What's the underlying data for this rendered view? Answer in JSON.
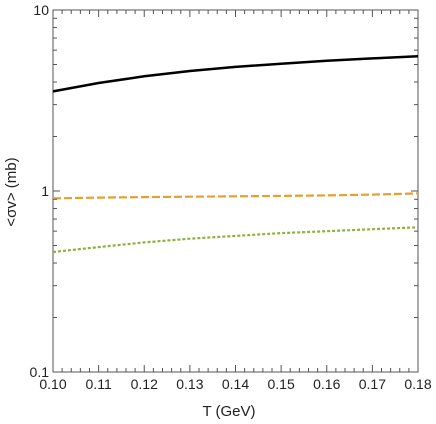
{
  "chart_data": {
    "type": "line",
    "title": "",
    "xlabel": "T (GeV)",
    "ylabel": "<σv> (mb)",
    "xlim": [
      0.1,
      0.18
    ],
    "ylim": [
      0.1,
      10
    ],
    "yscale": "log",
    "xticks": [
      0.1,
      0.11,
      0.12,
      0.13,
      0.14,
      0.15,
      0.16,
      0.17,
      0.18
    ],
    "xtick_labels": [
      "0.10",
      "0.11",
      "0.12",
      "0.13",
      "0.14",
      "0.15",
      "0.16",
      "0.17",
      "0.18"
    ],
    "yticks": [
      0.1,
      1,
      10
    ],
    "ytick_labels": [
      "0.1",
      "1",
      "10"
    ],
    "grid": false,
    "legend": "none",
    "x": [
      0.1,
      0.11,
      0.12,
      0.13,
      0.14,
      0.15,
      0.16,
      0.17,
      0.18
    ],
    "series": [
      {
        "values": [
          3.55,
          3.95,
          4.3,
          4.6,
          4.85,
          5.05,
          5.25,
          5.4,
          5.55
        ],
        "color": "#000000",
        "style": "solid"
      },
      {
        "values": [
          0.91,
          0.92,
          0.925,
          0.93,
          0.935,
          0.94,
          0.945,
          0.955,
          0.97
        ],
        "color": "#e6a030",
        "style": "dashed"
      },
      {
        "values": [
          0.46,
          0.49,
          0.52,
          0.545,
          0.565,
          0.585,
          0.6,
          0.615,
          0.63
        ],
        "color": "#8fb03a",
        "style": "dotted"
      }
    ]
  }
}
